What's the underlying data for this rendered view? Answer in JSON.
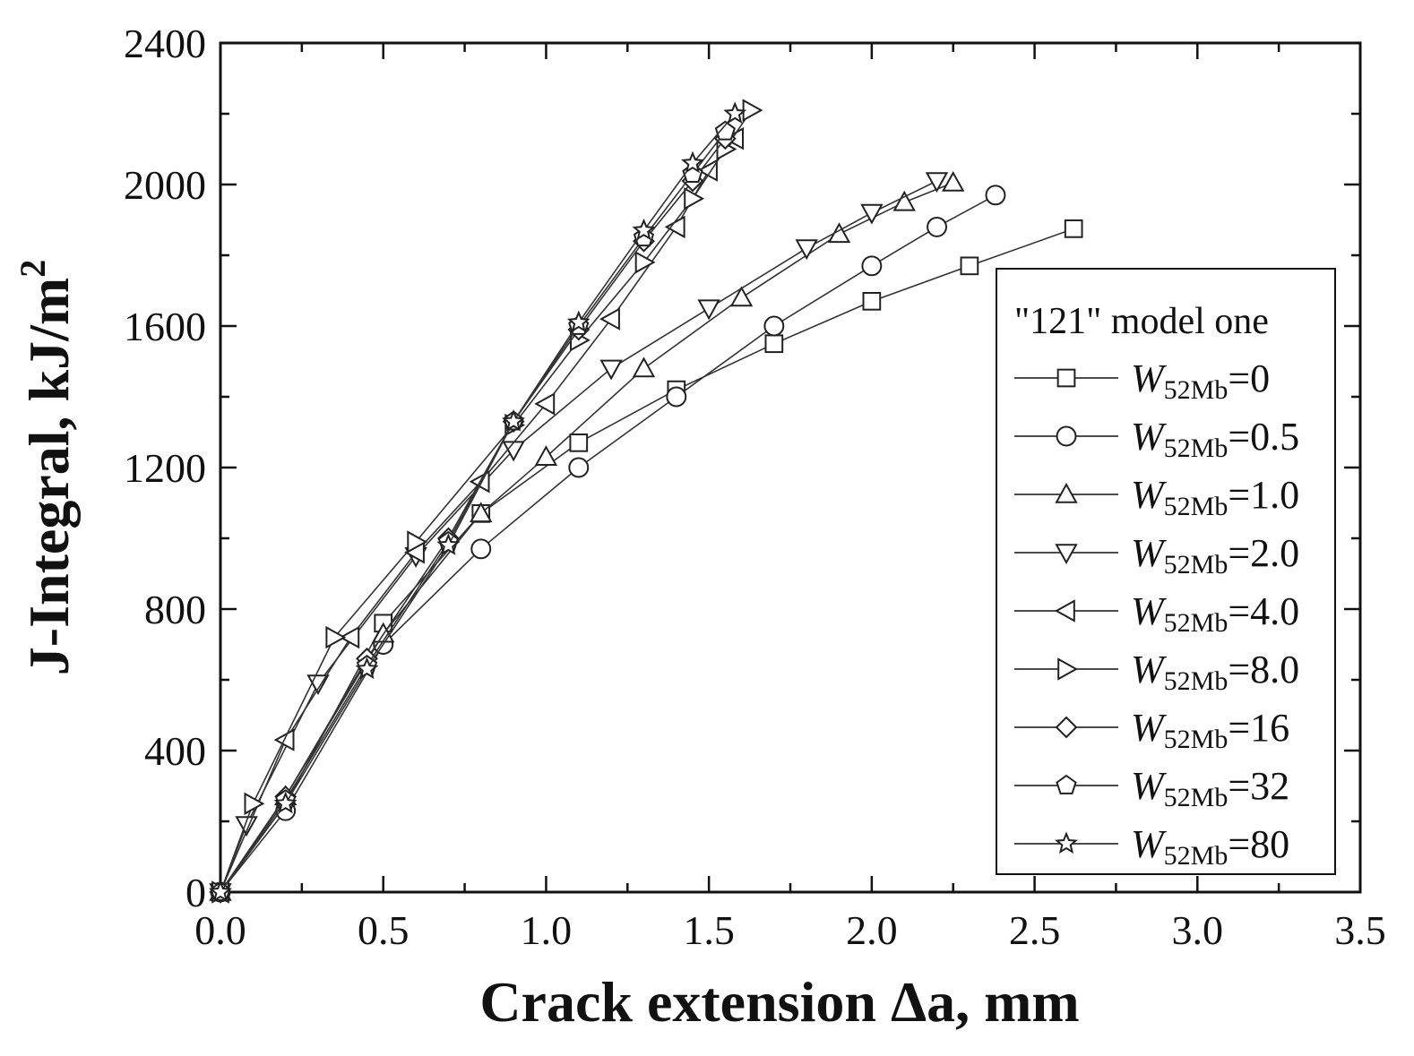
{
  "chart_data": {
    "type": "line",
    "title": "",
    "xlabel": "Crack extension Δa, mm",
    "ylabel": "J-Integral, kJ/m",
    "ylabel_sup": "2",
    "xlim": [
      0,
      3.5
    ],
    "ylim": [
      0,
      2400
    ],
    "x_ticks": [
      "0.0",
      "0.5",
      "1.0",
      "1.5",
      "2.0",
      "2.5",
      "3.0",
      "3.5"
    ],
    "y_ticks": [
      "0",
      "400",
      "800",
      "1200",
      "1600",
      "2000",
      "2400"
    ],
    "grid": false,
    "legend": {
      "title": "\"121\" model one",
      "placement": "right",
      "entries": [
        {
          "var": "W",
          "sub": "52Mb",
          "value": "=0",
          "marker": "square"
        },
        {
          "var": "W",
          "sub": "52Mb",
          "value": "=0.5",
          "marker": "circle"
        },
        {
          "var": "W",
          "sub": "52Mb",
          "value": "=1.0",
          "marker": "triangle-up"
        },
        {
          "var": "W",
          "sub": "52Mb",
          "value": "=2.0",
          "marker": "triangle-down"
        },
        {
          "var": "W",
          "sub": "52Mb",
          "value": "=4.0",
          "marker": "triangle-left"
        },
        {
          "var": "W",
          "sub": "52Mb",
          "value": "=8.0",
          "marker": "triangle-right"
        },
        {
          "var": "W",
          "sub": "52Mb",
          "value": "=16",
          "marker": "diamond"
        },
        {
          "var": "W",
          "sub": "52Mb",
          "value": "=32",
          "marker": "pentagon"
        },
        {
          "var": "W",
          "sub": "52Mb",
          "value": "=80",
          "marker": "star"
        }
      ]
    },
    "series": [
      {
        "marker": "square",
        "x": [
          0.0,
          0.2,
          0.5,
          0.8,
          1.1,
          1.4,
          1.7,
          2.0,
          2.3,
          2.62
        ],
        "y": [
          0,
          250,
          760,
          1070,
          1270,
          1420,
          1550,
          1670,
          1770,
          1875
        ]
      },
      {
        "marker": "circle",
        "x": [
          0.0,
          0.2,
          0.5,
          0.8,
          1.1,
          1.4,
          1.7,
          2.0,
          2.2,
          2.38
        ],
        "y": [
          0,
          230,
          700,
          970,
          1200,
          1400,
          1600,
          1770,
          1880,
          1970
        ]
      },
      {
        "marker": "triangle-up",
        "x": [
          0.0,
          0.2,
          0.5,
          0.8,
          1.0,
          1.3,
          1.6,
          1.9,
          2.1,
          2.25
        ],
        "y": [
          0,
          270,
          730,
          1070,
          1230,
          1480,
          1680,
          1860,
          1950,
          2005
        ]
      },
      {
        "marker": "triangle-down",
        "x": [
          0.0,
          0.08,
          0.3,
          0.6,
          0.9,
          1.2,
          1.5,
          1.8,
          2.0,
          2.2
        ],
        "y": [
          0,
          190,
          590,
          950,
          1250,
          1480,
          1650,
          1820,
          1920,
          2010
        ]
      },
      {
        "marker": "triangle-left",
        "x": [
          0.0,
          0.2,
          0.4,
          0.6,
          0.8,
          1.0,
          1.2,
          1.4,
          1.5,
          1.58
        ],
        "y": [
          0,
          430,
          720,
          960,
          1160,
          1380,
          1620,
          1880,
          2040,
          2130
        ]
      },
      {
        "marker": "triangle-right",
        "x": [
          0.0,
          0.1,
          0.35,
          0.6,
          0.9,
          1.1,
          1.3,
          1.45,
          1.55,
          1.63
        ],
        "y": [
          0,
          250,
          720,
          990,
          1320,
          1560,
          1780,
          1960,
          2100,
          2210
        ]
      },
      {
        "marker": "diamond",
        "x": [
          0.0,
          0.2,
          0.45,
          0.7,
          0.9,
          1.1,
          1.3,
          1.45,
          1.55
        ],
        "y": [
          0,
          270,
          660,
          1000,
          1330,
          1590,
          1840,
          2010,
          2130
        ]
      },
      {
        "marker": "pentagon",
        "x": [
          0.0,
          0.2,
          0.45,
          0.7,
          0.9,
          1.1,
          1.3,
          1.45,
          1.55
        ],
        "y": [
          0,
          260,
          640,
          990,
          1330,
          1600,
          1850,
          2030,
          2150
        ]
      },
      {
        "marker": "star",
        "x": [
          0.0,
          0.2,
          0.45,
          0.7,
          0.9,
          1.1,
          1.3,
          1.45,
          1.58
        ],
        "y": [
          0,
          250,
          630,
          980,
          1330,
          1610,
          1870,
          2060,
          2200
        ]
      }
    ]
  }
}
